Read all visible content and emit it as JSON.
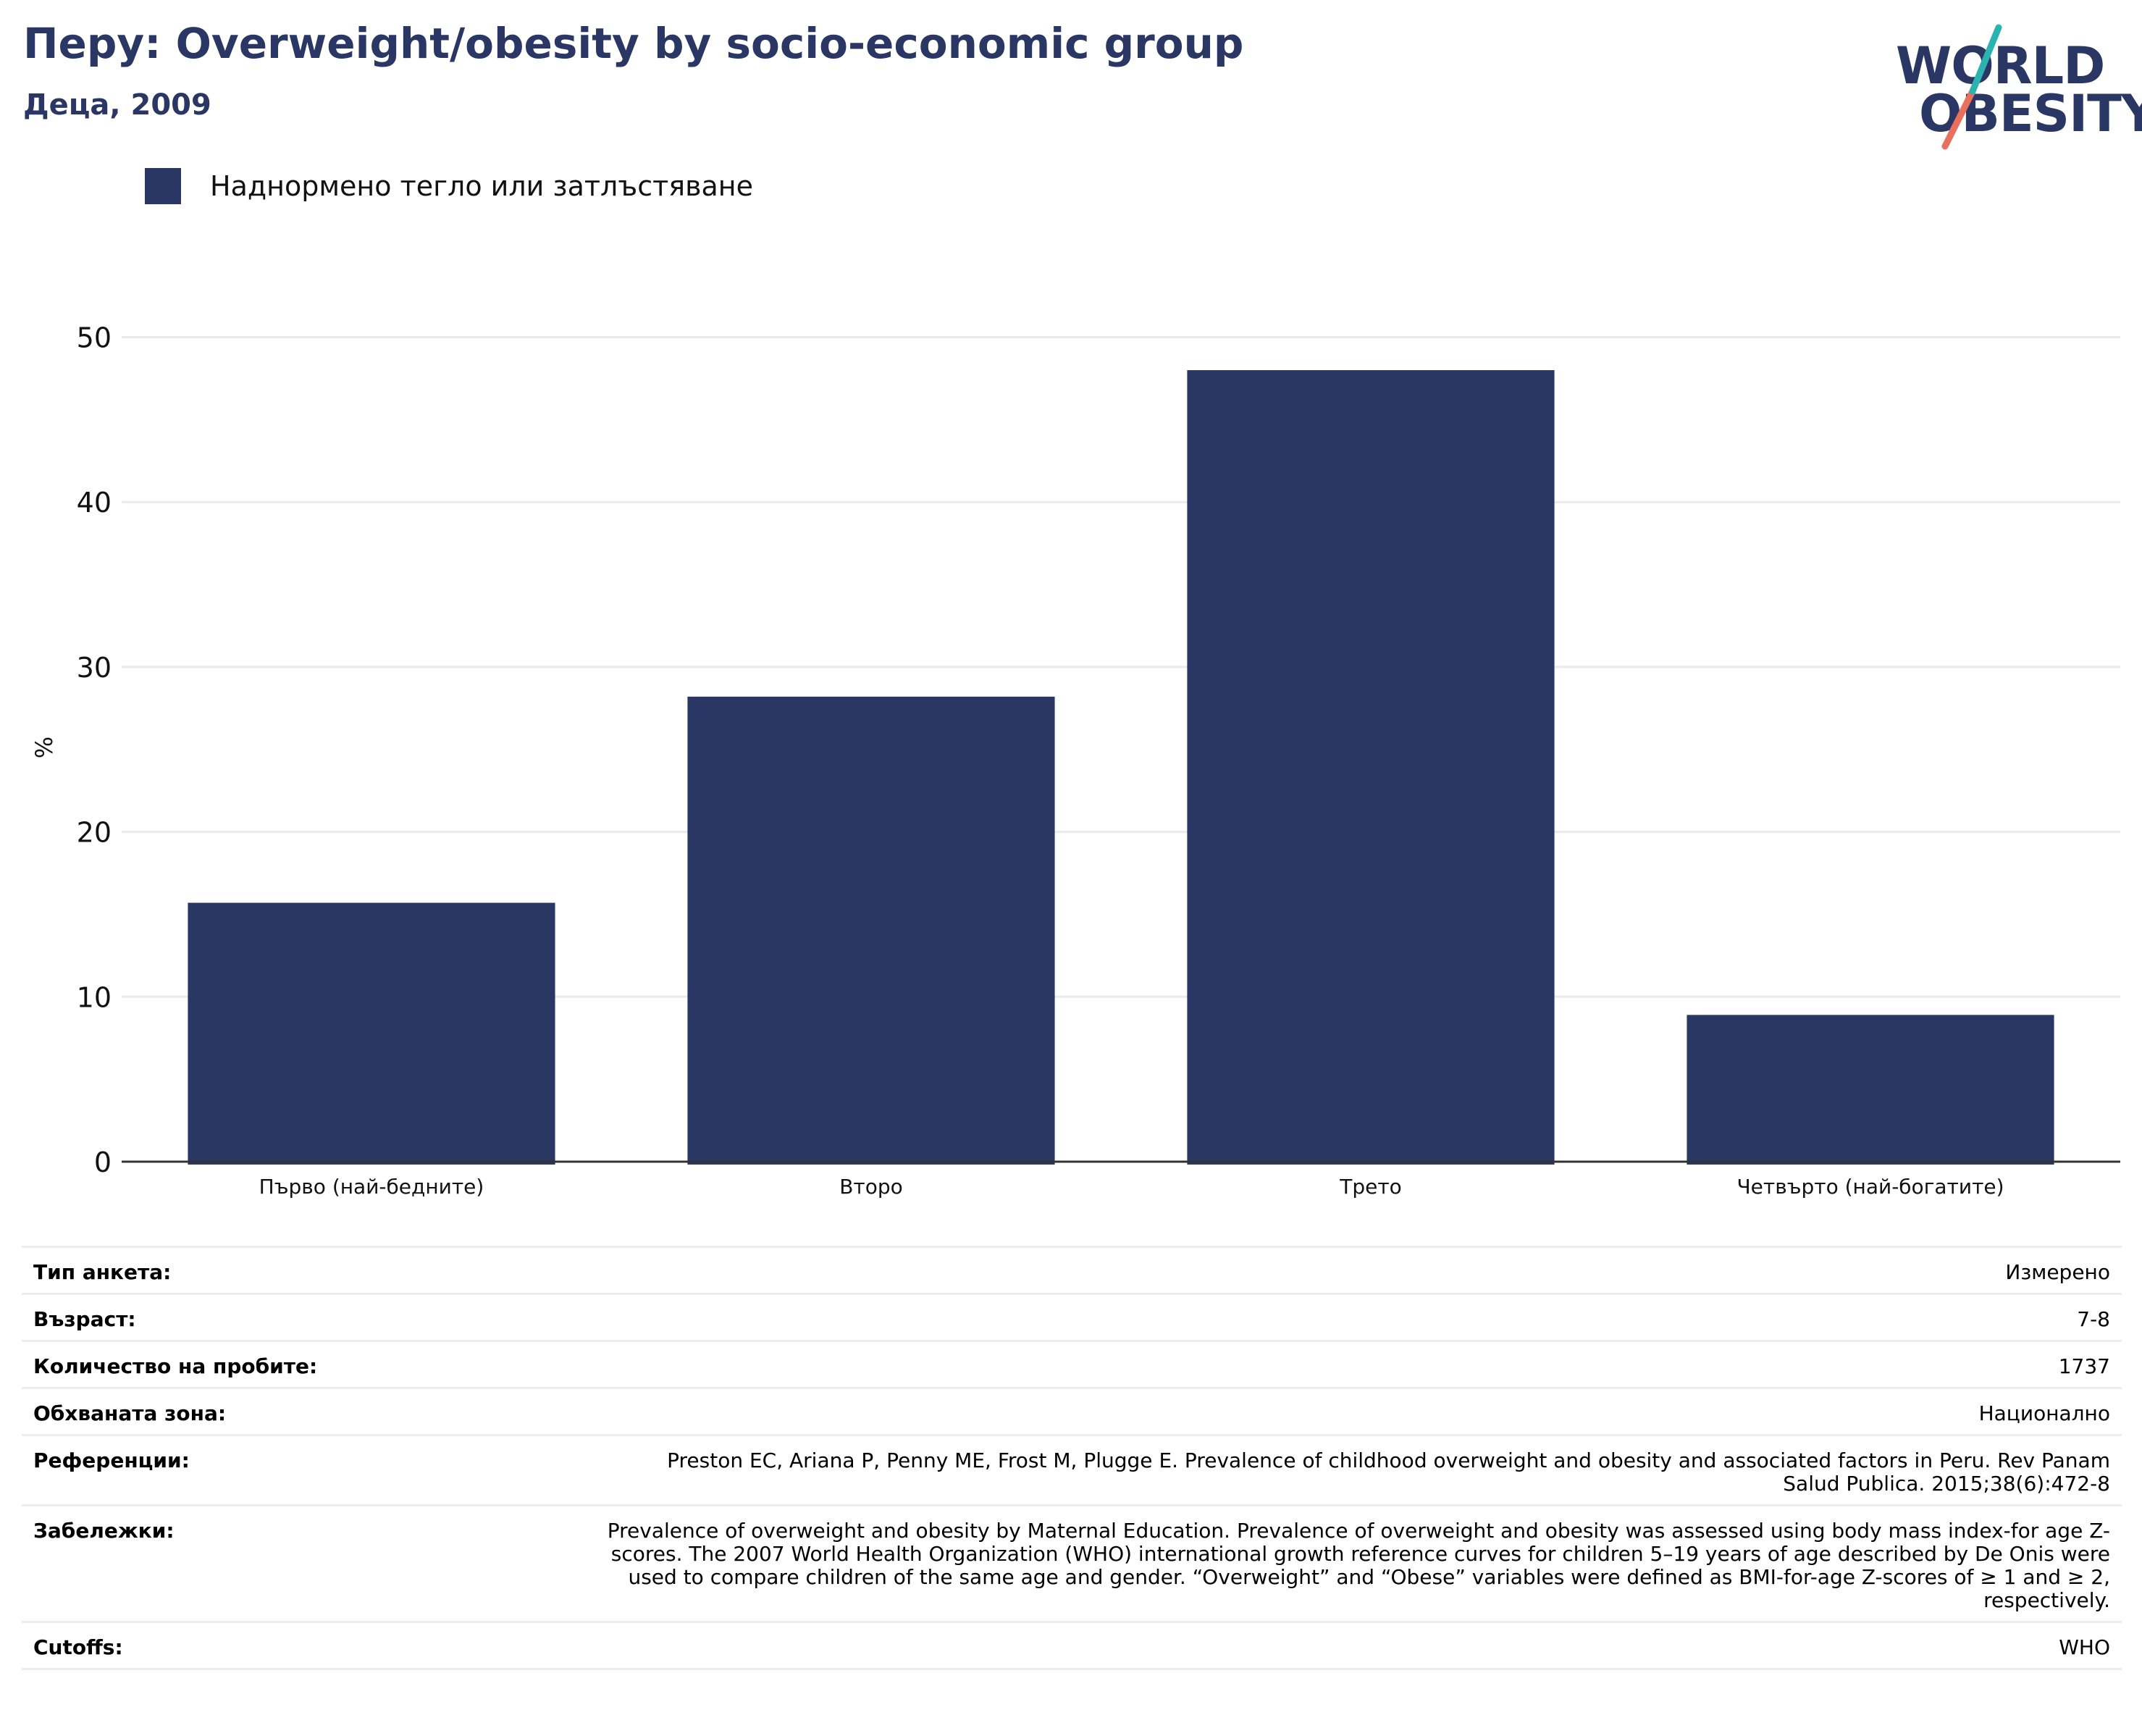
{
  "header": {
    "title": "Перу: Overweight/obesity by socio-economic group",
    "subtitle": "Деца, 2009"
  },
  "logo": {
    "line1": "WORLD",
    "line2": "OBESITY"
  },
  "colors": {
    "bar": "#2a3663",
    "title": "#2a3663",
    "grid": "#e9e9f0",
    "logo_teal": "#2ab3b0",
    "logo_coral": "#e8705d"
  },
  "chart_data": {
    "type": "bar",
    "categories": [
      "Първо (най-бедните)",
      "Второ",
      "Трето",
      "Четвърто (най-богатите)"
    ],
    "series": [
      {
        "name": "Наднормено тегло или затлъстяване",
        "values": [
          15.7,
          28.2,
          48.0,
          8.9
        ]
      }
    ],
    "ylabel": "%",
    "xlabel": "",
    "ylim": [
      0,
      52
    ],
    "yticks": [
      0,
      10,
      20,
      30,
      40,
      50
    ],
    "grid": true,
    "legend": "top-left"
  },
  "meta": [
    {
      "label": "Тип анкета:",
      "value": "Измерено"
    },
    {
      "label": "Възраст:",
      "value": "7-8"
    },
    {
      "label": "Количество на пробите:",
      "value": "1737"
    },
    {
      "label": "Обхваната зона:",
      "value": "Национално"
    },
    {
      "label": "Референции:",
      "value": "Preston EC, Ariana P, Penny ME, Frost M, Plugge E. Prevalence of childhood overweight and obesity and associated factors in Peru. Rev Panam Salud Publica. 2015;38(6):472-8"
    },
    {
      "label": "Забележки:",
      "value": "Prevalence of overweight and obesity by Maternal Education. Prevalence of overweight and obesity was assessed using body mass index-for age Z-scores. The 2007 World Health Organization (WHO) international growth reference curves for children 5–19 years of age described by De Onis were used to compare children of the same age and gender. “Overweight” and “Obese” variables were defined as BMI-for-age Z-scores of ≥ 1 and ≥ 2, respectively."
    },
    {
      "label": "Cutoffs:",
      "value": "WHO"
    }
  ]
}
